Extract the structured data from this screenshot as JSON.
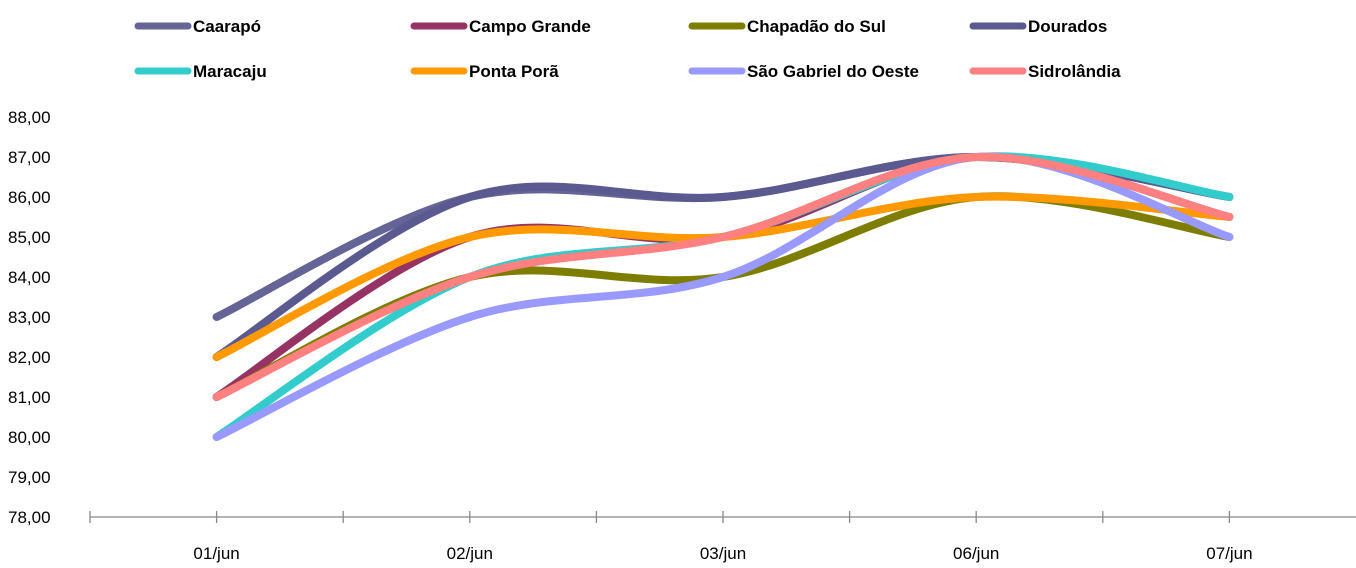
{
  "chart_data": {
    "type": "line",
    "title": "",
    "xlabel": "",
    "ylabel": "",
    "categories": [
      "01/jun",
      "02/jun",
      "03/jun",
      "06/jun",
      "07/jun"
    ],
    "ylim": [
      78,
      88
    ],
    "y_ticks": [
      "78,00",
      "79,00",
      "80,00",
      "81,00",
      "82,00",
      "83,00",
      "84,00",
      "85,00",
      "86,00",
      "87,00",
      "88,00"
    ],
    "grid": false,
    "legend_position": "top",
    "series": [
      {
        "name": "Caarapó",
        "color": "#646496",
        "values": [
          83,
          86,
          86,
          87,
          86
        ]
      },
      {
        "name": "Campo Grande",
        "color": "#963264",
        "values": [
          81,
          85,
          85,
          87,
          85.5
        ]
      },
      {
        "name": "Chapadão do Sul",
        "color": "#7d7d00",
        "values": [
          81,
          84,
          84,
          86,
          85
        ]
      },
      {
        "name": "Dourados",
        "color": "#5a5a91",
        "values": [
          82,
          86,
          86,
          87,
          86
        ]
      },
      {
        "name": "Maracaju",
        "color": "#33cccc",
        "values": [
          80,
          84,
          85,
          87,
          86
        ]
      },
      {
        "name": "Ponta Porã",
        "color": "#ff9900",
        "values": [
          82,
          85,
          85,
          86,
          85.5
        ]
      },
      {
        "name": "São Gabriel do Oeste",
        "color": "#9999ff",
        "values": [
          80,
          83,
          84,
          87,
          85
        ]
      },
      {
        "name": "Sidrolândia",
        "color": "#ff8080",
        "values": [
          81,
          84,
          85,
          87,
          85.5
        ]
      }
    ]
  }
}
